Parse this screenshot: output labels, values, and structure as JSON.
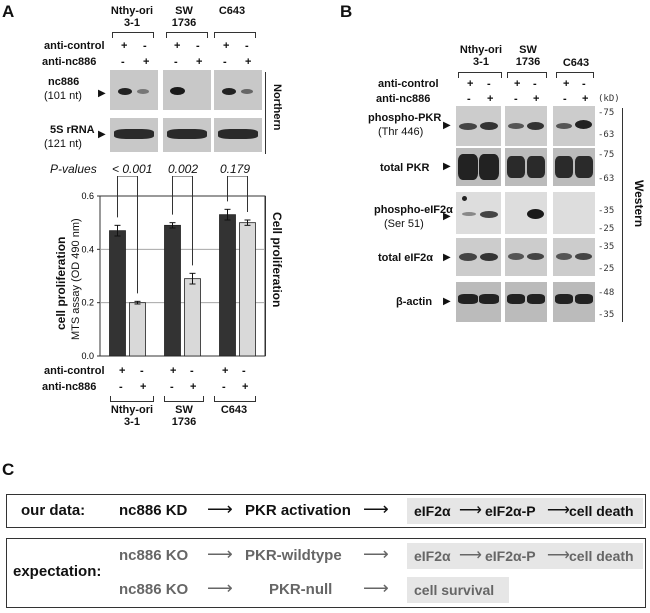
{
  "panel_a": {
    "letter": "A",
    "cells": [
      {
        "line1": "Nthy-ori",
        "line2": "3-1"
      },
      {
        "line1": "SW",
        "line2": "1736"
      },
      {
        "line1": "C643",
        "line2": ""
      }
    ],
    "row_anti_control": "anti-control",
    "row_anti_nc886": "anti-nc886",
    "plus": "+",
    "minus": "-",
    "nc886_label": "nc886",
    "nc886_size": "(101 nt)",
    "rrna_label": "5S rRNA",
    "rrna_size": "(121 nt)",
    "northern": "Northern",
    "pvalues_label": "P-values",
    "pvalues": [
      "< 0.001",
      "0.002",
      "0.179"
    ],
    "ylabel_bold": "cell proliferation",
    "ylabel_sub": "MTS assay (OD 490 nm)",
    "cell_prolif_side": "Cell proliferation"
  },
  "chart_data": {
    "type": "bar",
    "categories": [
      "Nthy-ori 3-1",
      "SW 1736",
      "C643"
    ],
    "series": [
      {
        "name": "anti-control",
        "values": [
          0.47,
          0.49,
          0.53
        ],
        "errors": [
          0.02,
          0.01,
          0.02
        ],
        "color": "#333333"
      },
      {
        "name": "anti-nc886",
        "values": [
          0.2,
          0.29,
          0.5
        ],
        "errors": [
          0.005,
          0.02,
          0.01
        ],
        "color": "#d9d9d9"
      }
    ],
    "ylim": [
      0,
      0.6
    ],
    "yticks": [
      "0.0",
      "0.2",
      "0.4",
      "0.6"
    ],
    "grid": true
  },
  "panel_b": {
    "letter": "B",
    "cells": [
      {
        "line1": "Nthy-ori",
        "line2": "3-1"
      },
      {
        "line1": "SW",
        "line2": "1736"
      },
      {
        "line1": "C643",
        "line2": ""
      }
    ],
    "row_anti_control": "anti-control",
    "row_anti_nc886": "anti-nc886",
    "kd": "(kD)",
    "blots": [
      {
        "label": "phospho-PKR",
        "sub": "(Thr 446)",
        "markers": [
          "75",
          "63"
        ]
      },
      {
        "label": "total PKR",
        "sub": "",
        "markers": [
          "75",
          "63"
        ]
      },
      {
        "label": "phospho-eIF2α",
        "sub": "(Ser 51)",
        "markers": [
          "35",
          "25"
        ]
      },
      {
        "label": "total eIF2α",
        "sub": "",
        "markers": [
          "35",
          "25"
        ]
      },
      {
        "label": "β-actin",
        "sub": "",
        "markers": [
          "48",
          "35"
        ]
      }
    ],
    "western": "Western"
  },
  "panel_c": {
    "letter": "C",
    "our_data_label": "our data:",
    "our_data": [
      "nc886 KD",
      "PKR activation",
      "eIF2α",
      "eIF2α-P",
      "cell death"
    ],
    "expectation_label": "expectation:",
    "row1": [
      "nc886 KO",
      "PKR-wildtype",
      "eIF2α",
      "eIF2α-P",
      "cell death"
    ],
    "row2": [
      "nc886 KO",
      "PKR-null",
      "cell survival"
    ]
  }
}
